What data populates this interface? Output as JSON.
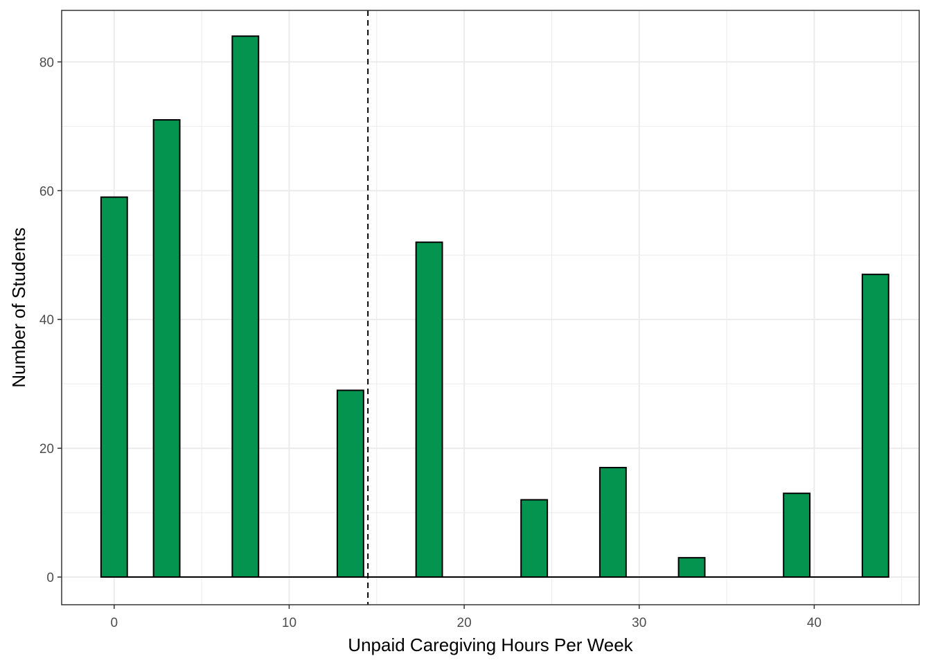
{
  "chart_data": {
    "type": "bar",
    "xlabel": "Unpaid Caregiving Hours Per Week",
    "ylabel": "Number of Students",
    "x_ticks": [
      0,
      10,
      20,
      30,
      40
    ],
    "y_ticks": [
      0,
      20,
      40,
      60,
      80
    ],
    "xlim": [
      -3,
      46
    ],
    "ylim": [
      -4.3,
      88
    ],
    "bin_width": 1.5,
    "x": [
      0,
      3,
      7.5,
      13.5,
      18,
      24,
      28.5,
      33,
      39,
      43.5
    ],
    "values": [
      59,
      71,
      84,
      29,
      52,
      12,
      17,
      3,
      13,
      47
    ],
    "reference_line": {
      "x": 14.5,
      "style": "dashed"
    },
    "grid": true,
    "colors": {
      "fill": "#05944F",
      "outline": "#000000",
      "grid": "#ebebeb",
      "panel_border": "#333333"
    }
  }
}
